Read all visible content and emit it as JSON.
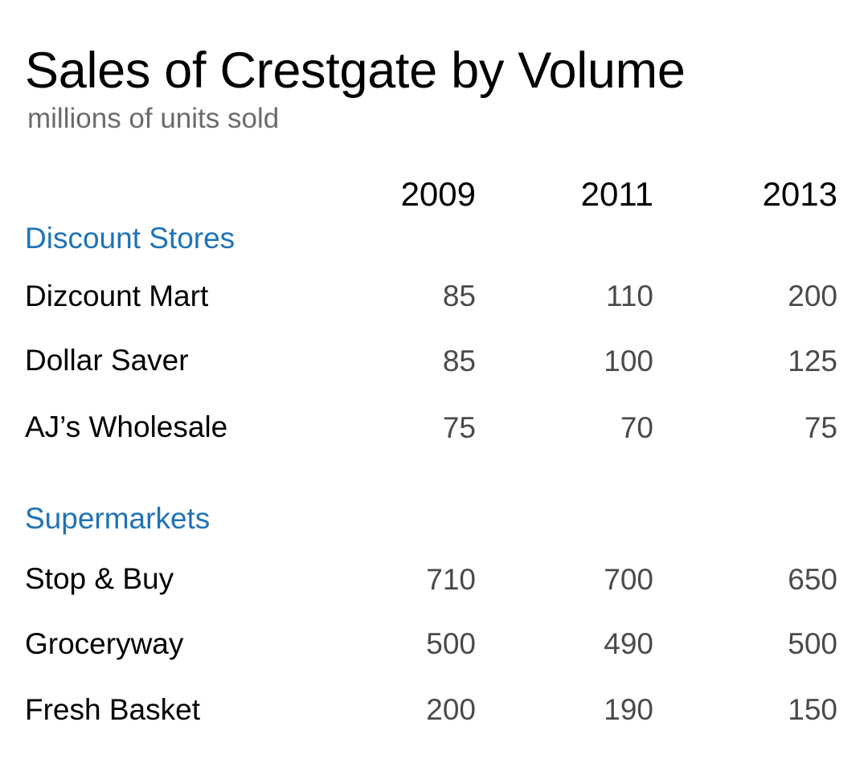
{
  "title": "Sales of Crestgate by Volume",
  "subtitle": "millions of units sold",
  "colors": {
    "group_label": "#1f73b7",
    "text": "#000000",
    "value": "#4a4a4a",
    "subtitle": "#6b6b6b"
  },
  "chart_data": {
    "type": "table",
    "title": "Sales of Crestgate by Volume",
    "subtitle": "millions of units sold",
    "columns": [
      "2009",
      "2011",
      "2013"
    ],
    "groups": [
      {
        "name": "Discount Stores",
        "rows": [
          {
            "label": "Dizcount Mart",
            "values": [
              85,
              110,
              200
            ]
          },
          {
            "label": "Dollar Saver",
            "values": [
              85,
              100,
              125
            ]
          },
          {
            "label": "AJ’s Wholesale",
            "values": [
              75,
              70,
              75
            ]
          }
        ]
      },
      {
        "name": "Supermarkets",
        "rows": [
          {
            "label": "Stop & Buy",
            "values": [
              710,
              700,
              650
            ]
          },
          {
            "label": "Groceryway",
            "values": [
              500,
              490,
              500
            ]
          },
          {
            "label": "Fresh Basket",
            "values": [
              200,
              190,
              150
            ]
          }
        ]
      }
    ]
  }
}
